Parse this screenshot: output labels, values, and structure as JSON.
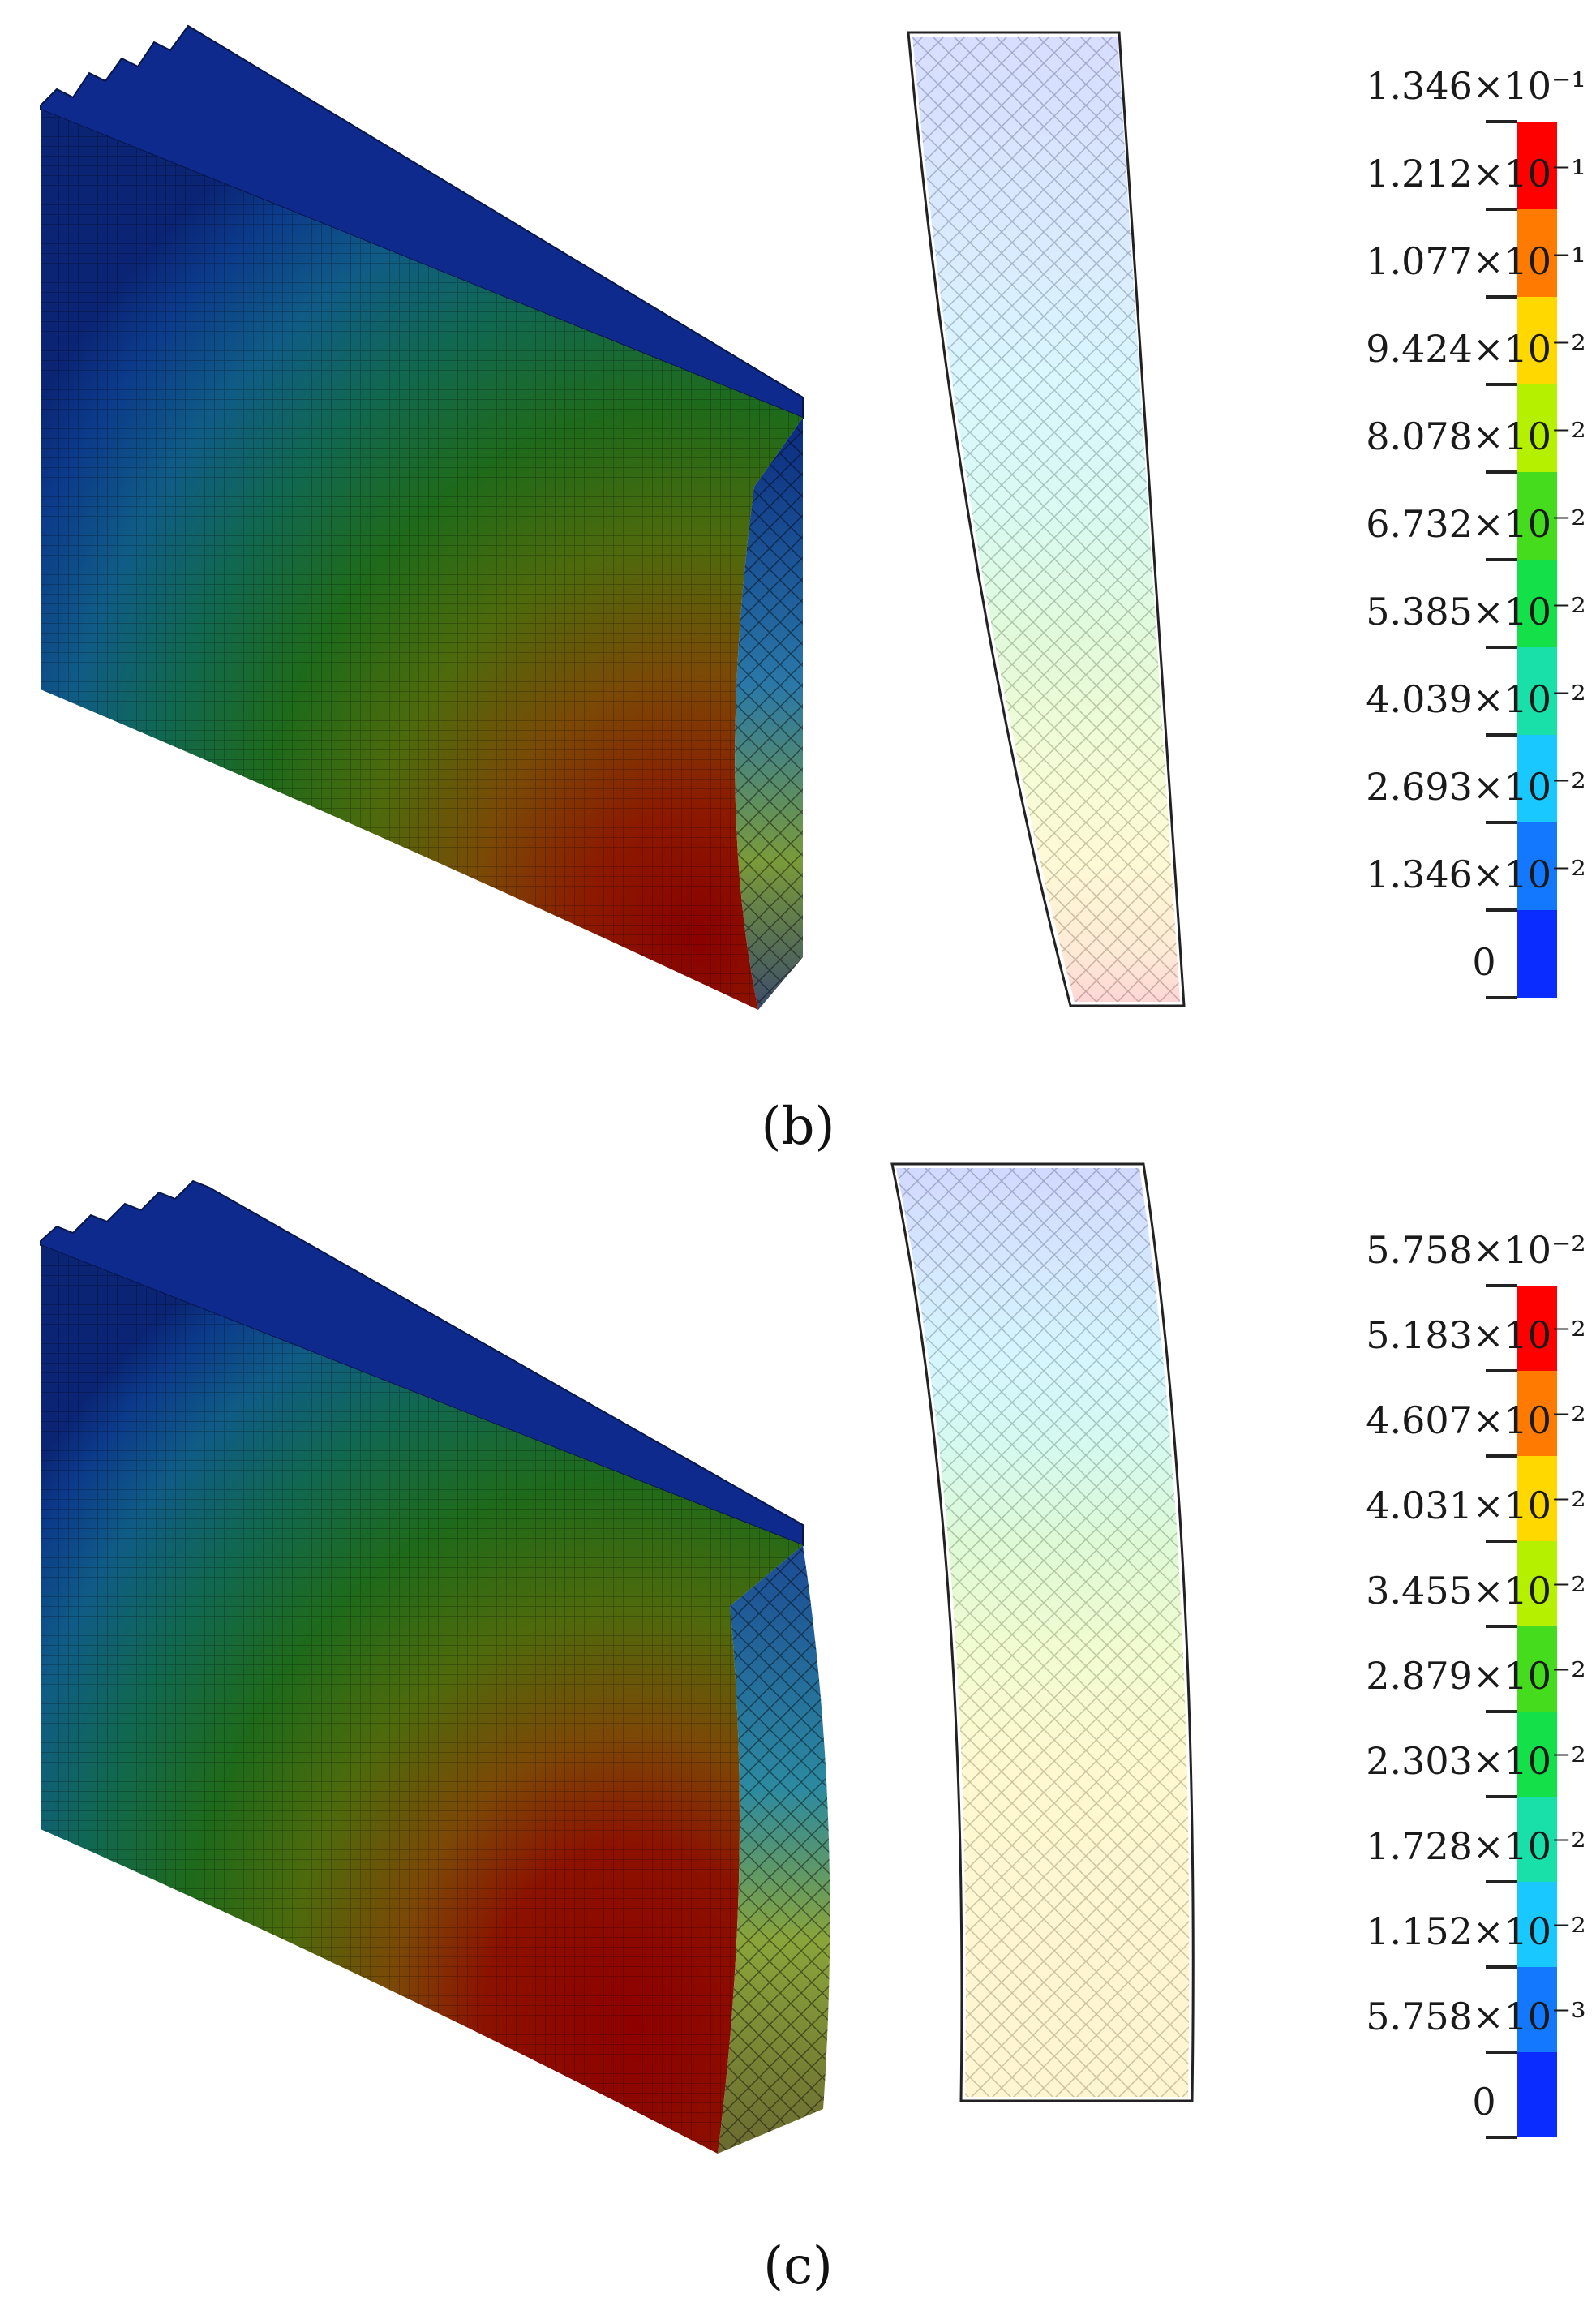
{
  "panels": [
    {
      "id": "b",
      "caption": "(b)",
      "legend": {
        "labels": [
          "1.346×10⁻¹",
          "1.212×10⁻¹",
          "1.077×10⁻¹",
          "9.424×10⁻²",
          "8.078×10⁻²",
          "6.732×10⁻²",
          "5.385×10⁻²",
          "4.039×10⁻²",
          "2.693×10⁻²",
          "1.346×10⁻²",
          "0"
        ],
        "colors": [
          "#ff0000",
          "#ff7a00",
          "#ffd800",
          "#b4f000",
          "#44dc1c",
          "#14e04a",
          "#18e0a8",
          "#19c8ff",
          "#1478ff",
          "#0a2cff"
        ]
      }
    },
    {
      "id": "c",
      "caption": "(c)",
      "legend": {
        "labels": [
          "5.758×10⁻²",
          "5.183×10⁻²",
          "4.607×10⁻²",
          "4.031×10⁻²",
          "3.455×10⁻²",
          "2.879×10⁻²",
          "2.303×10⁻²",
          "1.728×10⁻²",
          "1.152×10⁻²",
          "5.758×10⁻³",
          "0"
        ],
        "colors": [
          "#ff0000",
          "#ff7a00",
          "#ffd800",
          "#b4f000",
          "#44dc1c",
          "#14e04a",
          "#18e0a8",
          "#19c8ff",
          "#1478ff",
          "#0a2cff"
        ]
      }
    }
  ]
}
